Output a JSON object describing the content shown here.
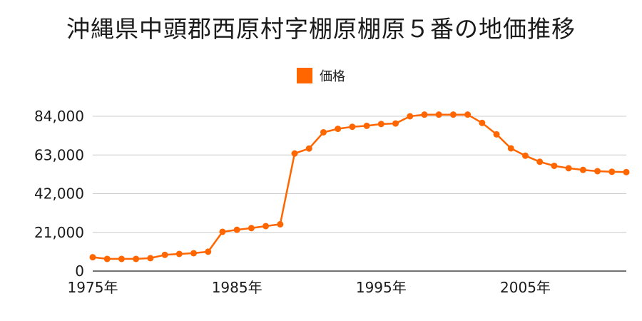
{
  "chart_data": {
    "type": "line",
    "title": "沖縄県中頭郡西原村字棚原棚原５番の地価推移",
    "series": [
      {
        "name": "価格",
        "color": "#ff6600",
        "x": [
          1975,
          1976,
          1977,
          1978,
          1979,
          1980,
          1981,
          1982,
          1983,
          1984,
          1985,
          1986,
          1987,
          1988,
          1989,
          1990,
          1991,
          1992,
          1993,
          1994,
          1995,
          1996,
          1997,
          1998,
          1999,
          2000,
          2001,
          2002,
          2003,
          2004,
          2005,
          2006,
          2007,
          2008,
          2009,
          2010,
          2011,
          2012
        ],
        "values": [
          7500,
          6600,
          6600,
          6600,
          7000,
          8800,
          9300,
          9700,
          10500,
          21300,
          22400,
          23300,
          24400,
          25400,
          63800,
          66500,
          75300,
          77200,
          78300,
          78800,
          79800,
          80100,
          84000,
          84900,
          84900,
          84900,
          84900,
          80400,
          74200,
          66600,
          62600,
          59300,
          57100,
          55800,
          54900,
          54200,
          53900,
          53700
        ]
      }
    ],
    "x_ticks": [
      {
        "value": 1975,
        "label": "1975年"
      },
      {
        "value": 1985,
        "label": "1985年"
      },
      {
        "value": 1995,
        "label": "1995年"
      },
      {
        "value": 2005,
        "label": "2005年"
      }
    ],
    "y_ticks": [
      {
        "value": 0,
        "label": "0"
      },
      {
        "value": 21000,
        "label": "21,000"
      },
      {
        "value": 42000,
        "label": "42,000"
      },
      {
        "value": 63000,
        "label": "63,000"
      },
      {
        "value": 84000,
        "label": "84,000"
      }
    ],
    "xlim": [
      1975,
      2012
    ],
    "ylim": [
      0,
      84000
    ],
    "grid": true,
    "legend_position": "top-center",
    "gridline_color": "#cccccc",
    "axis_color": "#444444"
  }
}
